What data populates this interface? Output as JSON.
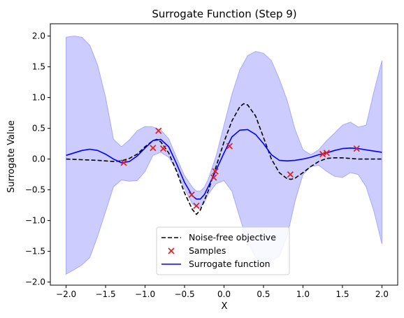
{
  "chart_data": {
    "type": "line",
    "title": "Surrogate Function (Step 9)",
    "xlabel": "X",
    "ylabel": "Surrogate Value",
    "xlim": [
      -2.2,
      2.2
    ],
    "ylim": [
      -2.05,
      2.2
    ],
    "xticks": [
      -2.0,
      -1.5,
      -1.0,
      -0.5,
      0.0,
      0.5,
      1.0,
      1.5,
      2.0
    ],
    "xtick_labels": [
      "−2.0",
      "−1.5",
      "−1.0",
      "−0.5",
      "0.0",
      "0.5",
      "1.0",
      "1.5",
      "2.0"
    ],
    "yticks": [
      -2.0,
      -1.5,
      -1.0,
      -0.5,
      0.0,
      0.5,
      1.0,
      1.5,
      2.0
    ],
    "ytick_labels": [
      "−2.0",
      "−1.5",
      "−1.0",
      "−0.5",
      "0.0",
      "0.5",
      "1.0",
      "1.5",
      "2.0"
    ],
    "grid": false,
    "legend_position": "bottom-center",
    "colors": {
      "objective": "#000000",
      "samples": "#d62728",
      "surrogate": "#0000ff",
      "band_fill": "#ccccff",
      "band_edge": "#a8a8ff"
    },
    "series": [
      {
        "name": "Noise-free objective",
        "style": "dashed",
        "x": [
          -2.0,
          -1.8,
          -1.6,
          -1.4,
          -1.3,
          -1.2,
          -1.1,
          -1.0,
          -0.9,
          -0.85,
          -0.8,
          -0.7,
          -0.6,
          -0.5,
          -0.4,
          -0.35,
          -0.3,
          -0.2,
          -0.1,
          0.0,
          0.1,
          0.2,
          0.25,
          0.3,
          0.4,
          0.5,
          0.6,
          0.7,
          0.8,
          0.85,
          0.9,
          1.0,
          1.1,
          1.2,
          1.3,
          1.4,
          1.5,
          1.6,
          1.7,
          1.8,
          2.0
        ],
        "y": [
          0.0,
          -0.01,
          -0.02,
          -0.04,
          -0.03,
          0.01,
          0.08,
          0.2,
          0.3,
          0.32,
          0.28,
          0.1,
          -0.2,
          -0.55,
          -0.82,
          -0.9,
          -0.83,
          -0.52,
          -0.12,
          0.28,
          0.62,
          0.85,
          0.9,
          0.88,
          0.7,
          0.35,
          0.0,
          -0.22,
          -0.32,
          -0.33,
          -0.31,
          -0.22,
          -0.12,
          -0.04,
          0.01,
          0.02,
          0.02,
          0.01,
          0.0,
          0.0,
          0.0
        ]
      },
      {
        "name": "Surrogate function",
        "style": "solid",
        "x": [
          -2.0,
          -1.9,
          -1.8,
          -1.7,
          -1.6,
          -1.5,
          -1.4,
          -1.3,
          -1.2,
          -1.1,
          -1.0,
          -0.9,
          -0.8,
          -0.7,
          -0.6,
          -0.5,
          -0.4,
          -0.35,
          -0.3,
          -0.25,
          -0.2,
          -0.1,
          0.0,
          0.1,
          0.2,
          0.3,
          0.4,
          0.5,
          0.6,
          0.7,
          0.8,
          0.9,
          1.0,
          1.1,
          1.2,
          1.3,
          1.4,
          1.5,
          1.6,
          1.7,
          1.8,
          1.9,
          2.0
        ],
        "y": [
          0.06,
          0.1,
          0.14,
          0.16,
          0.14,
          0.08,
          0.0,
          -0.06,
          -0.04,
          0.05,
          0.18,
          0.3,
          0.32,
          0.2,
          -0.08,
          -0.38,
          -0.6,
          -0.65,
          -0.65,
          -0.58,
          -0.45,
          -0.18,
          0.1,
          0.36,
          0.47,
          0.48,
          0.4,
          0.25,
          0.07,
          -0.02,
          -0.03,
          -0.02,
          0.0,
          0.03,
          0.07,
          0.1,
          0.14,
          0.17,
          0.18,
          0.17,
          0.15,
          0.13,
          0.11
        ]
      }
    ],
    "band": {
      "x": [
        -2.0,
        -1.9,
        -1.8,
        -1.7,
        -1.6,
        -1.5,
        -1.4,
        -1.3,
        -1.2,
        -1.1,
        -1.0,
        -0.9,
        -0.8,
        -0.7,
        -0.6,
        -0.5,
        -0.4,
        -0.35,
        -0.3,
        -0.25,
        -0.2,
        -0.1,
        0.0,
        0.1,
        0.2,
        0.3,
        0.4,
        0.5,
        0.6,
        0.7,
        0.8,
        0.9,
        1.0,
        1.1,
        1.2,
        1.3,
        1.4,
        1.5,
        1.6,
        1.7,
        1.8,
        1.9,
        2.0
      ],
      "upper": [
        1.98,
        2.0,
        1.98,
        1.85,
        1.52,
        1.0,
        0.32,
        0.2,
        0.31,
        0.46,
        0.53,
        0.52,
        0.47,
        0.33,
        0.02,
        -0.27,
        -0.46,
        -0.52,
        -0.52,
        -0.46,
        -0.33,
        0.05,
        0.55,
        1.05,
        1.45,
        1.68,
        1.75,
        1.72,
        1.6,
        1.3,
        0.95,
        0.48,
        0.15,
        0.07,
        0.15,
        0.3,
        0.42,
        0.55,
        0.6,
        0.52,
        0.55,
        1.1,
        1.6
      ],
      "lower": [
        -1.87,
        -1.8,
        -1.72,
        -1.6,
        -1.25,
        -0.85,
        -0.45,
        -0.34,
        -0.36,
        -0.35,
        -0.2,
        0.06,
        0.11,
        0.03,
        -0.18,
        -0.48,
        -0.73,
        -0.78,
        -0.78,
        -0.71,
        -0.57,
        -0.4,
        -0.35,
        -0.52,
        -0.95,
        -1.35,
        -1.6,
        -1.7,
        -1.65,
        -1.58,
        -1.25,
        -0.68,
        -0.25,
        -0.12,
        -0.1,
        -0.2,
        -0.28,
        -0.3,
        -0.22,
        -0.25,
        -0.45,
        -0.85,
        -1.38
      ]
    },
    "samples": {
      "name": "Samples",
      "x": [
        -1.27,
        -0.9,
        -0.83,
        -0.77,
        -0.41,
        -0.35,
        -0.13,
        -0.11,
        0.07,
        0.84,
        1.25,
        1.3,
        1.68
      ],
      "y": [
        -0.06,
        0.18,
        0.46,
        0.17,
        -0.58,
        -0.76,
        -0.3,
        -0.2,
        0.21,
        -0.25,
        0.08,
        0.1,
        0.17
      ]
    },
    "legend": [
      "Noise-free objective",
      "Samples",
      "Surrogate function"
    ]
  }
}
